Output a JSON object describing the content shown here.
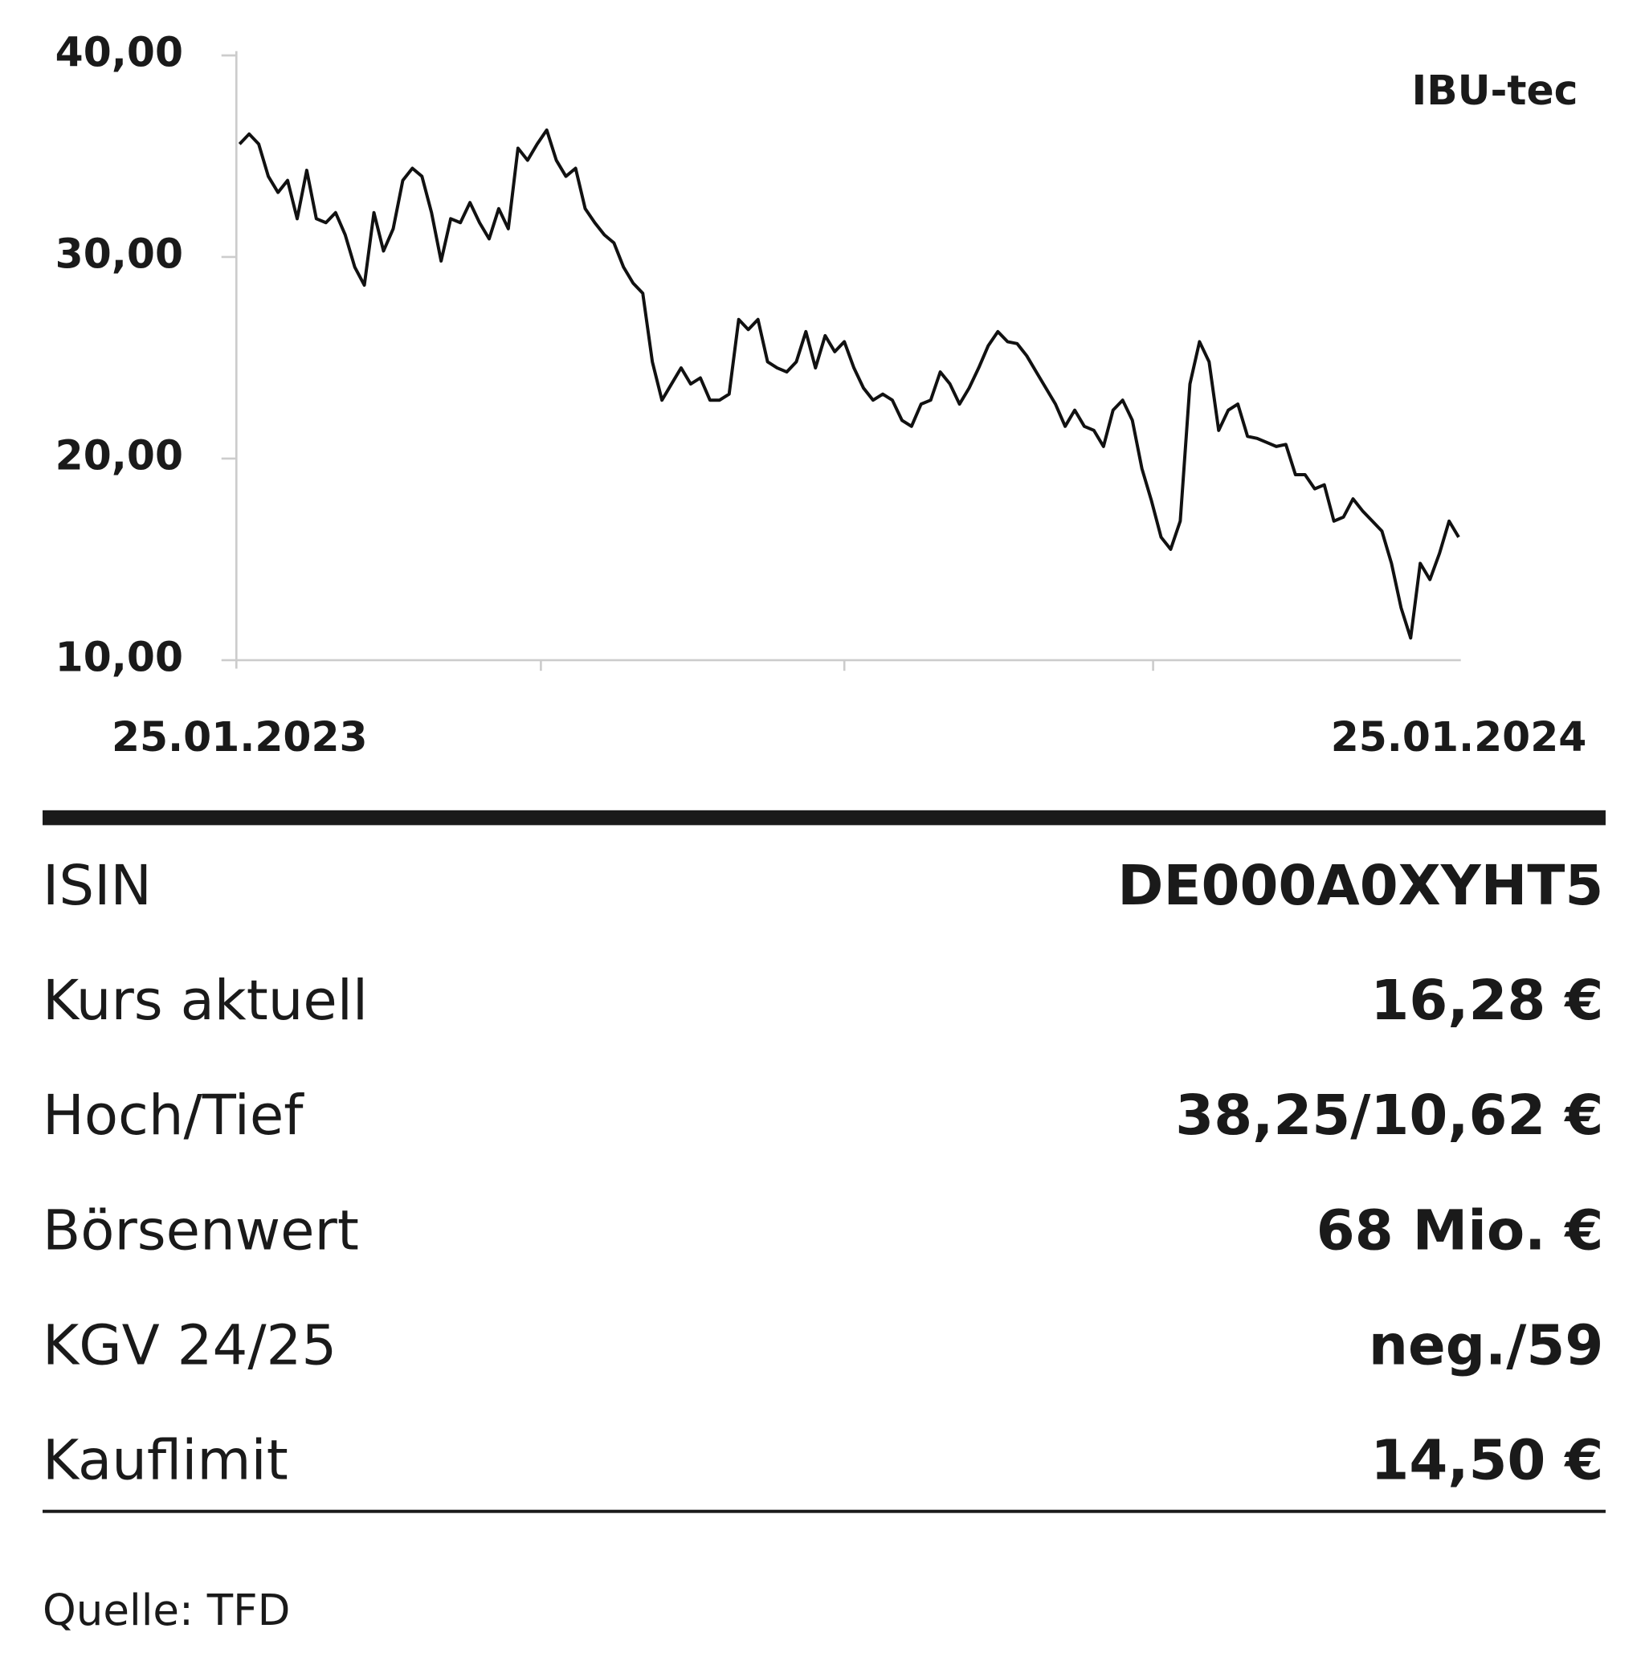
{
  "chart_data": {
    "type": "line",
    "legend_label": "IBU-tec",
    "color": "#111111",
    "categories": [
      "25.01.2023",
      null,
      null,
      null,
      null,
      null,
      null,
      null,
      null,
      null,
      null,
      null,
      null,
      null,
      null,
      null,
      null,
      null,
      null,
      null,
      null,
      null,
      null,
      null,
      null,
      null,
      null,
      null,
      null,
      null,
      null,
      null,
      null,
      null,
      null,
      null,
      null,
      null,
      null,
      null,
      null,
      null,
      null,
      null,
      null,
      null,
      null,
      null,
      null,
      null,
      null,
      null,
      null,
      null,
      null,
      null,
      null,
      null,
      null,
      null,
      null,
      null,
      null,
      null,
      null,
      null,
      null,
      null,
      null,
      null,
      null,
      null,
      null,
      null,
      null,
      null,
      null,
      null,
      null,
      null,
      null,
      null,
      null,
      null,
      null,
      null,
      null,
      null,
      null,
      null,
      null,
      null,
      null,
      null,
      null,
      null,
      null,
      null,
      null,
      null,
      null,
      null,
      null,
      null,
      null,
      null,
      null,
      null,
      null,
      null,
      null,
      null,
      null,
      null,
      null,
      null,
      null,
      null,
      null,
      null,
      null,
      null,
      null,
      null,
      null,
      null,
      null,
      "25.01.2024"
    ],
    "values": [
      35.6,
      36.1,
      35.6,
      34.0,
      33.2,
      33.8,
      31.9,
      34.3,
      31.9,
      31.7,
      32.2,
      31.1,
      29.5,
      28.6,
      32.2,
      30.3,
      31.4,
      33.8,
      34.4,
      34.0,
      32.2,
      29.8,
      31.9,
      31.7,
      32.7,
      31.7,
      30.9,
      32.4,
      31.4,
      35.4,
      34.8,
      35.6,
      36.3,
      34.8,
      34.0,
      34.4,
      32.4,
      31.7,
      31.1,
      30.7,
      29.5,
      28.7,
      28.2,
      24.8,
      22.9,
      23.7,
      24.5,
      23.7,
      24.0,
      22.9,
      22.9,
      23.2,
      26.9,
      26.4,
      26.9,
      24.8,
      24.5,
      24.3,
      24.8,
      26.3,
      24.5,
      26.1,
      25.3,
      25.8,
      24.5,
      23.5,
      22.9,
      23.2,
      22.9,
      21.9,
      21.6,
      22.7,
      22.9,
      24.3,
      23.7,
      22.7,
      23.5,
      24.5,
      25.6,
      26.3,
      25.8,
      25.7,
      25.1,
      24.3,
      23.5,
      22.7,
      21.6,
      22.4,
      21.6,
      21.4,
      20.6,
      22.4,
      22.9,
      21.9,
      19.5,
      17.9,
      16.1,
      15.5,
      16.9,
      23.7,
      25.8,
      24.8,
      21.4,
      22.4,
      22.7,
      21.1,
      21.0,
      20.8,
      20.6,
      20.7,
      19.2,
      19.2,
      18.5,
      18.7,
      16.9,
      17.1,
      18.0,
      17.4,
      16.9,
      16.4,
      14.8,
      12.6,
      11.1,
      14.8,
      14.0,
      15.3,
      16.9,
      16.1
    ],
    "ylim": [
      10,
      40
    ],
    "yticks": [
      {
        "value": 10,
        "label": "10,00"
      },
      {
        "value": 20,
        "label": "20,00"
      },
      {
        "value": 30,
        "label": "30,00"
      },
      {
        "value": 40,
        "label": "40,00"
      }
    ]
  },
  "table": {
    "rows": [
      [
        "ISIN",
        "DE000A0XYHT5"
      ],
      [
        "Kurs aktuell",
        "16,28 €"
      ],
      [
        "Hoch/Tief",
        "38,25/10,62 €"
      ],
      [
        "Börsenwert",
        "68 Mio. €"
      ],
      [
        "KGV 24/25",
        "neg./59"
      ],
      [
        "Kauflimit",
        "14,50 €"
      ]
    ]
  },
  "source": "Quelle: TFD"
}
